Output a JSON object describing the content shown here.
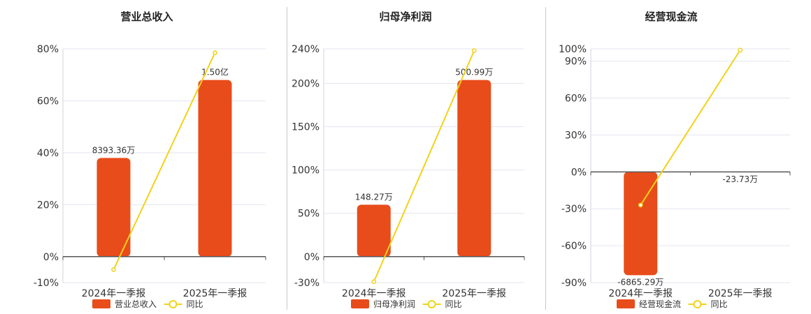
{
  "colors": {
    "bar": "#e84c1a",
    "line": "#f2d21b",
    "grid": "#e3e6ef",
    "axis": "#555555",
    "text": "#333333"
  },
  "chart_data": [
    {
      "type": "bar",
      "title": "营业总收入",
      "categories": [
        "2024年一季报",
        "2025年一季报"
      ],
      "ylim": [
        -10,
        80
      ],
      "yticks": [
        -10,
        0,
        20,
        40,
        60,
        80
      ],
      "ytick_labels": [
        "-10%",
        "0%",
        "20%",
        "40%",
        "60%",
        "80%"
      ],
      "series": [
        {
          "name": "营业总收入",
          "kind": "bar",
          "values": [
            38,
            68
          ],
          "labels": [
            "8393.36万",
            "1.50亿"
          ]
        },
        {
          "name": "同比",
          "kind": "line",
          "values": [
            -5,
            78.5
          ]
        }
      ],
      "legend": "bottom"
    },
    {
      "type": "bar",
      "title": "归母净利润",
      "categories": [
        "2024年一季报",
        "2025年一季报"
      ],
      "ylim": [
        -30,
        240
      ],
      "yticks": [
        -30,
        0,
        50,
        100,
        150,
        200,
        240
      ],
      "ytick_labels": [
        "-30%",
        "0%",
        "50%",
        "100%",
        "150%",
        "200%",
        "240%"
      ],
      "series": [
        {
          "name": "归母净利润",
          "kind": "bar",
          "values": [
            60,
            204
          ],
          "labels": [
            "148.27万",
            "500.99万"
          ]
        },
        {
          "name": "同比",
          "kind": "line",
          "values": [
            -29,
            238
          ]
        }
      ],
      "legend": "bottom"
    },
    {
      "type": "bar",
      "title": "经营现金流",
      "categories": [
        "2024年一季报",
        "2025年一季报"
      ],
      "ylim": [
        -90,
        100
      ],
      "yticks": [
        -90,
        -60,
        -30,
        0,
        30,
        60,
        90,
        100
      ],
      "ytick_labels": [
        "-90%",
        "-60%",
        "-30%",
        "0%",
        "30%",
        "60%",
        "90%",
        "100%"
      ],
      "series": [
        {
          "name": "经营现金流",
          "kind": "bar",
          "values": [
            -84,
            -0.3
          ],
          "labels": [
            "-6865.29万",
            "-23.73万"
          ]
        },
        {
          "name": "同比",
          "kind": "line",
          "values": [
            -27,
            99
          ]
        }
      ],
      "legend": "bottom"
    }
  ]
}
